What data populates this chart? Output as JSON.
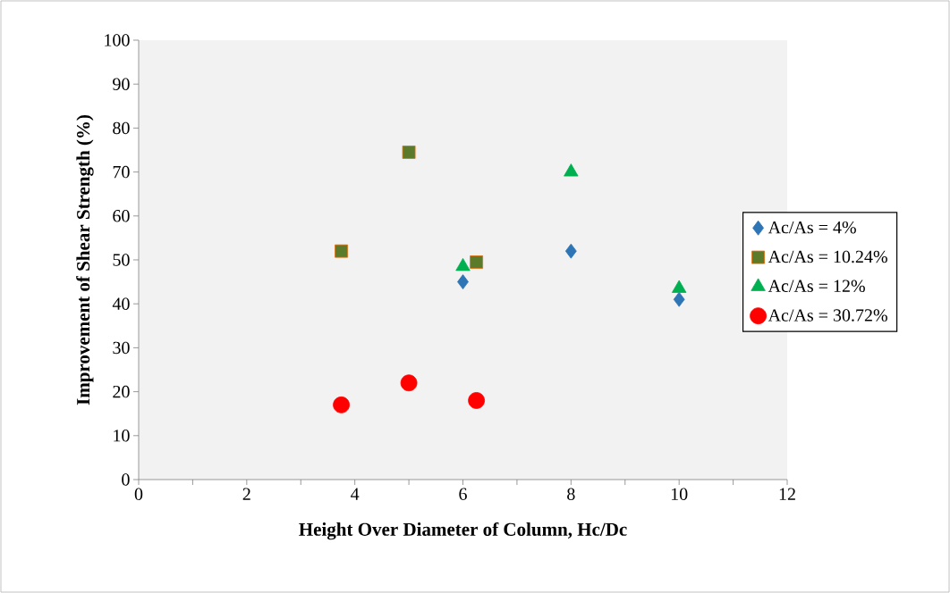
{
  "chart_data": {
    "type": "scatter",
    "xlabel": "Height Over Diameter of Column, Hc/Dc",
    "ylabel": "Improvement of Shear Strength (%)",
    "xlim": [
      0,
      12
    ],
    "ylim": [
      0,
      100
    ],
    "xticks": [
      0,
      {
        "value": 1,
        "label": null
      },
      2,
      {
        "value": 3,
        "label": null
      },
      4,
      {
        "value": 5,
        "label": null
      },
      6,
      {
        "value": 7,
        "label": null
      },
      8,
      {
        "value": 9,
        "label": null
      },
      10,
      {
        "value": 11,
        "label": null
      },
      12
    ],
    "yticks": [
      0,
      10,
      20,
      30,
      40,
      50,
      60,
      70,
      80,
      90,
      100
    ],
    "grid": false,
    "legend": "right",
    "series": [
      {
        "name": "Ac/As = 4%",
        "color": "#2e75b6",
        "marker": "diamond",
        "x": [
          6,
          8,
          10
        ],
        "values": [
          45,
          52,
          41
        ]
      },
      {
        "name": "Ac/As = 10.24%",
        "color": "#5b7b2b",
        "marker": "square",
        "x": [
          3.75,
          5,
          6.25
        ],
        "values": [
          52,
          74.5,
          49.5
        ]
      },
      {
        "name": "Ac/As = 12%",
        "color": "#00b050",
        "marker": "triangle",
        "x": [
          6,
          8,
          10
        ],
        "values": [
          48.5,
          70,
          43.5
        ]
      },
      {
        "name": "Ac/As = 30.72%",
        "color": "#ff0000",
        "marker": "circle",
        "x": [
          3.75,
          5,
          6.25
        ],
        "values": [
          17,
          22,
          18
        ]
      }
    ]
  }
}
